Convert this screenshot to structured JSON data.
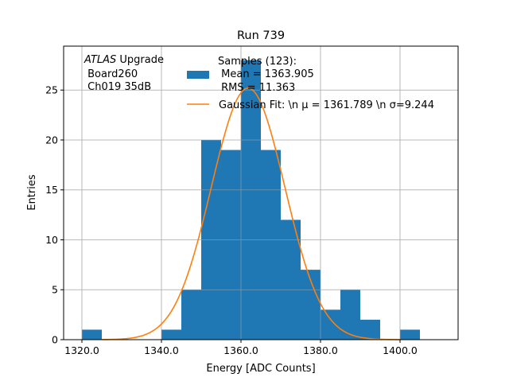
{
  "chart_data": {
    "type": "bar",
    "title": "Run 739",
    "xlabel": "Energy [ADC Counts]",
    "ylabel": "Entries",
    "xlim": [
      1315.4,
      1414.6
    ],
    "ylim": [
      0,
      29.4
    ],
    "grid": true,
    "x_ticks": [
      1320,
      1340,
      1360,
      1380,
      1400
    ],
    "x_tick_labels": [
      "1320.0",
      "1340.0",
      "1360.0",
      "1380.0",
      "1400.0"
    ],
    "y_ticks": [
      0,
      5,
      10,
      15,
      20,
      25
    ],
    "y_tick_labels": [
      "0",
      "5",
      "10",
      "15",
      "20",
      "25"
    ],
    "bin_width": 5,
    "bins": [
      {
        "x0": 1320,
        "count": 1
      },
      {
        "x0": 1340,
        "count": 1
      },
      {
        "x0": 1345,
        "count": 5
      },
      {
        "x0": 1350,
        "count": 20
      },
      {
        "x0": 1355,
        "count": 19
      },
      {
        "x0": 1360,
        "count": 28
      },
      {
        "x0": 1365,
        "count": 19
      },
      {
        "x0": 1370,
        "count": 12
      },
      {
        "x0": 1375,
        "count": 7
      },
      {
        "x0": 1380,
        "count": 3
      },
      {
        "x0": 1385,
        "count": 5
      },
      {
        "x0": 1390,
        "count": 2
      },
      {
        "x0": 1400,
        "count": 1
      }
    ],
    "fit": {
      "mu": 1361.789,
      "sigma": 9.244,
      "amplitude": 25.2
    },
    "colors": {
      "bars": "#1f77b4",
      "fit": "#ff7f0e",
      "grid": "#b0b0b0"
    },
    "annotation": {
      "line1_italic": "ATLAS",
      "line1_rest": " Upgrade",
      "line2": " Board260",
      "line3": " Ch019 35dB"
    },
    "legend": {
      "placement": "top-center",
      "samples": [
        "Samples (123):",
        " Mean = 1363.905",
        " RMS = 11.363"
      ],
      "fit": "Gaussian Fit: \\n μ = 1361.789 \\n σ=9.244"
    }
  }
}
